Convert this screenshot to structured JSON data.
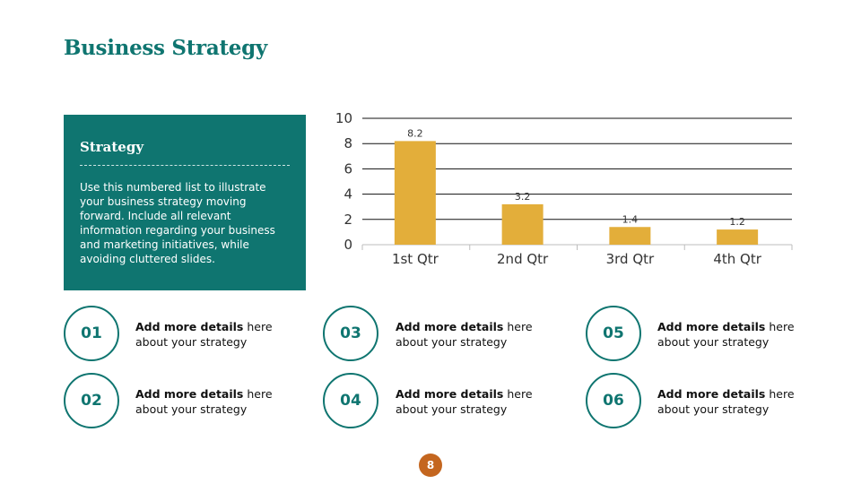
{
  "slide": {
    "title": "Business Strategy",
    "page_number": "8"
  },
  "strategy": {
    "heading": "Strategy",
    "body": "Use this numbered list to illustrate your business strategy moving forward. Include all relevant information regarding your business and marketing initiatives, while avoiding cluttered slides."
  },
  "items": [
    {
      "number": "01",
      "bold": "Add more details",
      "rest1": " here",
      "line2": "about your strategy"
    },
    {
      "number": "02",
      "bold": "Add more details",
      "rest1": " here",
      "line2": "about your strategy"
    },
    {
      "number": "03",
      "bold": "Add more details",
      "rest1": " here",
      "line2": "about your strategy"
    },
    {
      "number": "04",
      "bold": "Add more details",
      "rest1": " here",
      "line2": "about your strategy"
    },
    {
      "number": "05",
      "bold": "Add more details",
      "rest1": " here",
      "line2": "about your strategy"
    },
    {
      "number": "06",
      "bold": "Add more details",
      "rest1": " here",
      "line2": "about your strategy"
    }
  ],
  "colors": {
    "teal": "#0f7570",
    "bar": "#e3ae3a",
    "badge": "#c4661f"
  },
  "chart_data": {
    "type": "bar",
    "categories": [
      "1st Qtr",
      "2nd Qtr",
      "3rd Qtr",
      "4th Qtr"
    ],
    "values": [
      8.2,
      3.2,
      1.4,
      1.2
    ],
    "data_labels": [
      "8.2",
      "3.2",
      "1.4",
      "1.2"
    ],
    "yticks": [
      "0",
      "2",
      "4",
      "6",
      "8",
      "10"
    ],
    "ylim": [
      0,
      10
    ],
    "grid": true,
    "title": "",
    "xlabel": "",
    "ylabel": ""
  }
}
